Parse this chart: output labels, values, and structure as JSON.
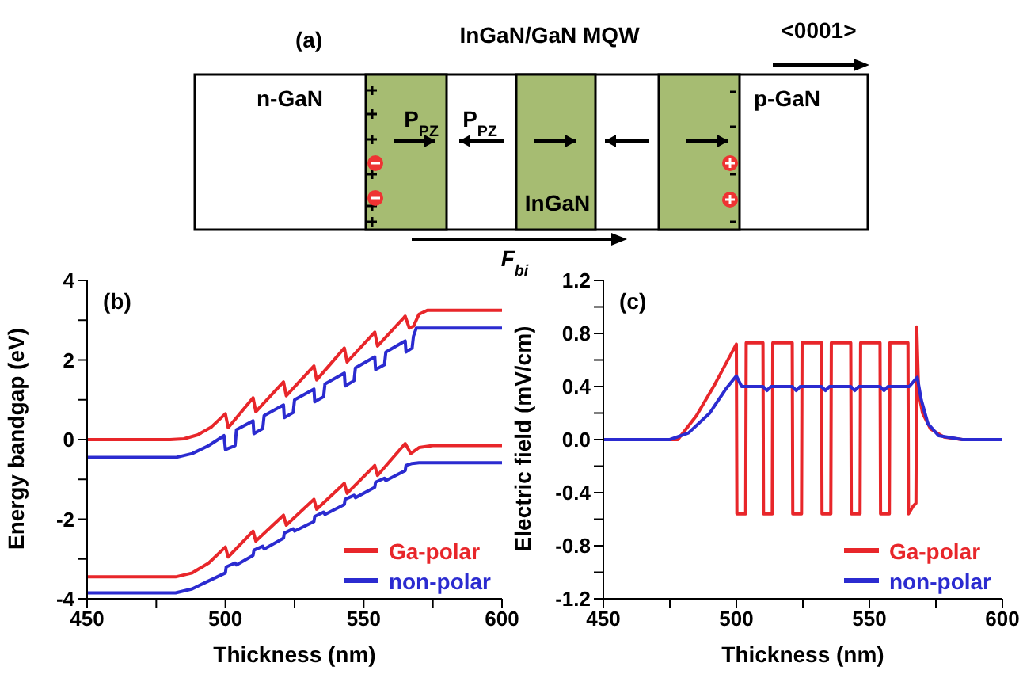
{
  "chart_data": [
    {
      "type": "other",
      "title": "InGaN/GaN MQW",
      "annotations": [
        "(a)",
        "<0001>",
        "n-GaN",
        "P$_{PZ}$",
        "P$_{PZ}$",
        "InGaN",
        "p-GaN",
        "F$_{bi}$"
      ]
    },
    {
      "type": "line",
      "xlabel": "Thickness (nm)",
      "ylabel": "Energy bandgap (eV)",
      "annotations": [
        "(b)"
      ],
      "legend": "bottom right",
      "xlim": [
        450,
        600
      ],
      "ylim": [
        -4,
        4
      ],
      "xticks": [
        450,
        {
          "value": 475,
          "label": null
        },
        500,
        {
          "value": 525,
          "label": null
        },
        550,
        {
          "value": 575,
          "label": null
        },
        600
      ],
      "yticks": [
        -4,
        {
          "value": -3,
          "label": null
        },
        -2,
        {
          "value": -1,
          "label": null
        },
        0,
        {
          "value": 1,
          "label": null
        },
        2,
        {
          "value": 3,
          "label": null
        },
        4
      ],
      "series": [
        {
          "name": "Ga-polar",
          "color": "#e8262a",
          "x": [
            450,
            480,
            485,
            490,
            495,
            500,
            501,
            510,
            511,
            521,
            522,
            532,
            533,
            543,
            544,
            554,
            555,
            565,
            566.5,
            568,
            570,
            573,
            600
          ],
          "values": [
            0,
            0,
            0.02,
            0.12,
            0.32,
            0.65,
            0.3,
            1.05,
            0.7,
            1.45,
            1.1,
            1.85,
            1.5,
            2.3,
            1.95,
            2.7,
            2.35,
            3.1,
            2.8,
            2.85,
            3.15,
            3.25,
            3.25
          ]
        },
        {
          "name": "non-polar",
          "color": "#2b2bd0",
          "x": [
            450,
            482,
            488,
            494,
            499.5,
            500,
            503.5,
            504,
            510,
            510.3,
            513.5,
            514,
            521,
            521.3,
            524.5,
            525,
            532,
            532.3,
            535.5,
            536,
            543,
            543.3,
            546.5,
            547,
            554,
            554.3,
            557.5,
            558,
            565,
            565.3,
            567.5,
            568,
            569,
            600
          ],
          "values": [
            -0.45,
            -0.45,
            -0.35,
            -0.15,
            0.1,
            -0.25,
            -0.15,
            0.25,
            0.47,
            0.15,
            0.28,
            0.6,
            0.87,
            0.55,
            0.68,
            1.0,
            1.27,
            0.95,
            1.08,
            1.4,
            1.67,
            1.35,
            1.48,
            1.8,
            2.08,
            1.76,
            1.88,
            2.2,
            2.48,
            2.2,
            2.3,
            2.6,
            2.8,
            2.8
          ]
        },
        {
          "color": "#e8262a",
          "x": [
            450,
            482,
            488,
            494,
            500,
            501,
            510,
            511,
            521,
            522,
            532,
            533,
            543,
            544,
            554,
            555,
            565,
            567,
            570,
            575,
            600
          ],
          "values": [
            -3.45,
            -3.45,
            -3.35,
            -3.1,
            -2.7,
            -2.95,
            -2.3,
            -2.55,
            -1.9,
            -2.15,
            -1.5,
            -1.75,
            -1.1,
            -1.35,
            -0.65,
            -0.9,
            -0.1,
            -0.35,
            -0.2,
            -0.15,
            -0.15
          ]
        },
        {
          "color": "#2b2bd0",
          "x": [
            450,
            482,
            488,
            494,
            500,
            500.3,
            503.5,
            504,
            510,
            510.3,
            513.5,
            514,
            521,
            521.3,
            524.5,
            525,
            532,
            532.3,
            535.5,
            536,
            543,
            543.3,
            546.5,
            547,
            554,
            554.3,
            557.5,
            558,
            565,
            565.3,
            567.5,
            570,
            600
          ],
          "values": [
            -3.85,
            -3.85,
            -3.75,
            -3.55,
            -3.35,
            -3.2,
            -3.1,
            -3.15,
            -2.91,
            -2.78,
            -2.68,
            -2.75,
            -2.48,
            -2.35,
            -2.24,
            -2.3,
            -2.06,
            -1.93,
            -1.82,
            -1.88,
            -1.63,
            -1.5,
            -1.4,
            -1.46,
            -1.2,
            -1.07,
            -0.97,
            -1.03,
            -0.78,
            -0.65,
            -0.6,
            -0.58,
            -0.58
          ]
        }
      ]
    },
    {
      "type": "line",
      "xlabel": "Thickness (nm)",
      "ylabel": "Electric field (mV/cm)",
      "annotations": [
        "(c)"
      ],
      "legend": "bottom right",
      "xlim": [
        450,
        600
      ],
      "ylim": [
        -1.2,
        1.2
      ],
      "xticks": [
        450,
        {
          "value": 475,
          "label": null
        },
        500,
        {
          "value": 525,
          "label": null
        },
        550,
        {
          "value": 575,
          "label": null
        },
        600
      ],
      "yticks": [
        -1.2,
        {
          "value": -1.0,
          "label": null
        },
        -0.8,
        {
          "value": -0.6,
          "label": null
        },
        -0.4,
        {
          "value": -0.2,
          "label": null
        },
        {
          "value": 0,
          "label": "0.0"
        },
        {
          "value": 0.2,
          "label": null
        },
        0.4,
        {
          "value": 0.6,
          "label": null
        },
        0.8,
        {
          "value": 1.0,
          "label": null
        },
        1.2
      ],
      "series": [
        {
          "name": "Ga-polar",
          "color": "#e8262a",
          "x": [
            450,
            478,
            485,
            492,
            500,
            500.2,
            503.5,
            503.7,
            510,
            510.2,
            513.5,
            513.7,
            521,
            521.2,
            524.5,
            524.7,
            532,
            532.2,
            535.5,
            535.7,
            543,
            543.2,
            546.5,
            546.7,
            554,
            554.2,
            557.5,
            557.7,
            564.5,
            564.7,
            566.5,
            567.5,
            567.8,
            568.5,
            570,
            573,
            578,
            585,
            600
          ],
          "values": [
            0,
            0,
            0.18,
            0.42,
            0.72,
            -0.56,
            -0.56,
            0.73,
            0.73,
            -0.56,
            -0.56,
            0.73,
            0.73,
            -0.56,
            -0.56,
            0.73,
            0.73,
            -0.56,
            -0.56,
            0.73,
            0.73,
            -0.56,
            -0.56,
            0.73,
            0.73,
            -0.56,
            -0.56,
            0.73,
            0.73,
            -0.56,
            -0.5,
            -0.48,
            0.85,
            0.35,
            0.2,
            0.08,
            0.02,
            0,
            0
          ]
        },
        {
          "name": "non-polar",
          "color": "#2b2bd0",
          "x": [
            450,
            475,
            482,
            490,
            496,
            500,
            502,
            510,
            511.5,
            513,
            521,
            522.5,
            524,
            532,
            533.5,
            535,
            543,
            544.5,
            546,
            554,
            555.5,
            557,
            565,
            568,
            569.5,
            572,
            576,
            585,
            600
          ],
          "values": [
            0,
            0,
            0.05,
            0.2,
            0.38,
            0.48,
            0.4,
            0.4,
            0.37,
            0.4,
            0.4,
            0.37,
            0.4,
            0.4,
            0.37,
            0.4,
            0.4,
            0.37,
            0.4,
            0.4,
            0.37,
            0.4,
            0.4,
            0.47,
            0.3,
            0.12,
            0.03,
            0,
            0
          ]
        }
      ]
    }
  ]
}
